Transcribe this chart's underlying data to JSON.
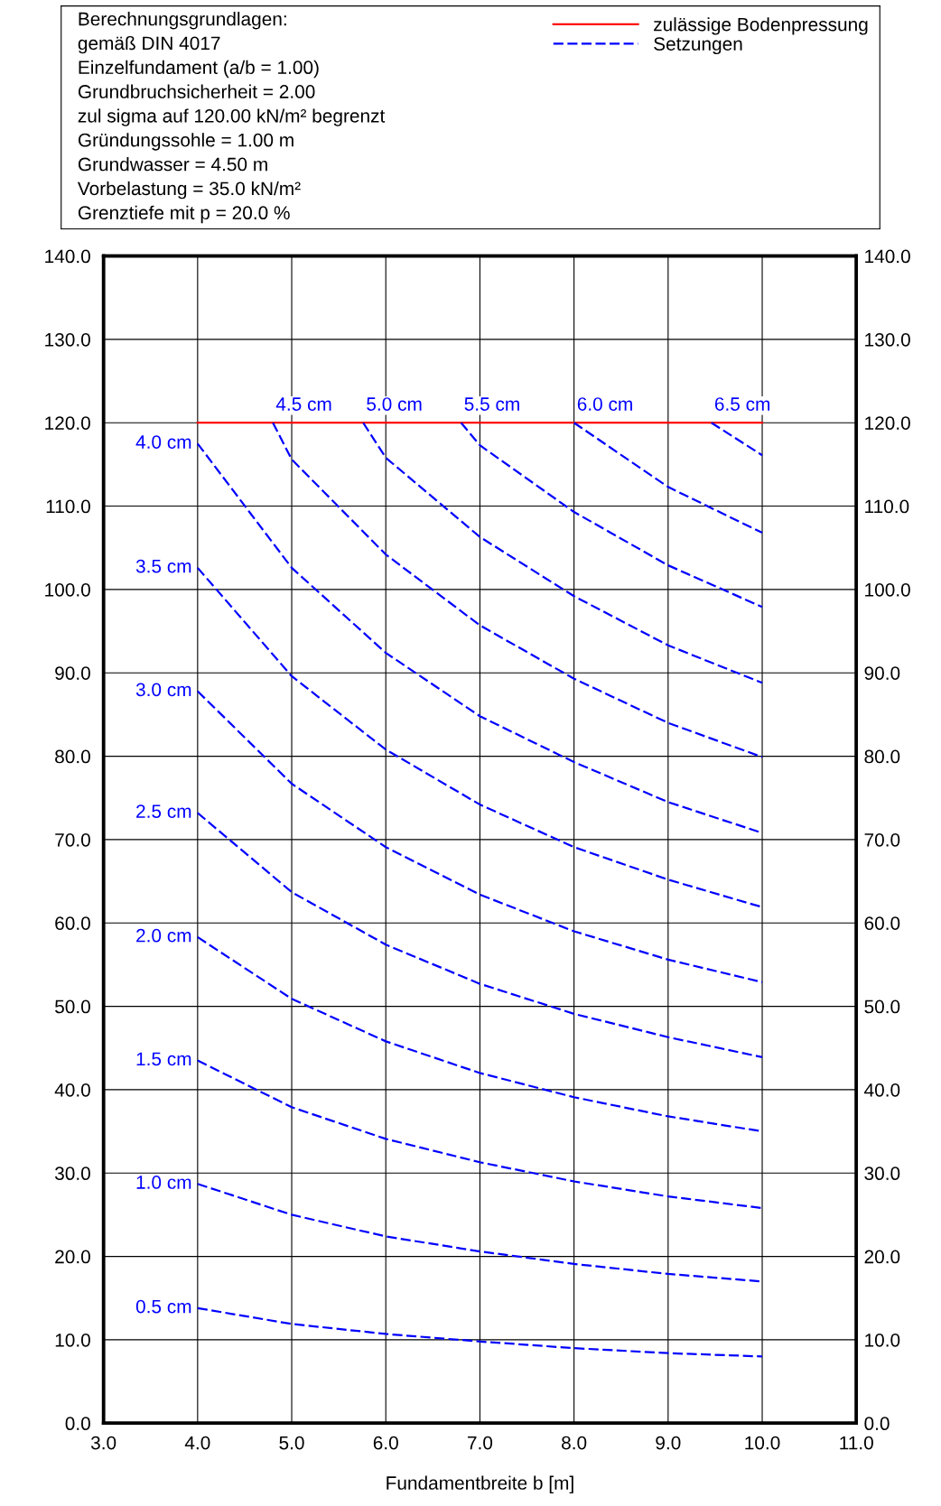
{
  "chart_data": {
    "type": "line",
    "annotations": [
      "Berechnungsgrundlagen:",
      "gemäß DIN 4017",
      "Einzelfundament (a/b = 1.00)",
      "Grundbruchsicherheit = 2.00",
      "zul sigma auf 120.00 kN/m² begrenzt",
      "Gründungssohle = 1.00 m",
      "Grundwasser = 4.50 m",
      "Vorbelastung = 35.0 kN/m²",
      "Grenztiefe mit p = 20.0 %"
    ],
    "legend_title": "Setzungen",
    "xlabel": "Fundamentbreite b [m]",
    "xlim": [
      3.0,
      11.0
    ],
    "xticks": [
      {
        "value": 3,
        "label": "3.0"
      },
      {
        "value": 4,
        "label": "4.0"
      },
      {
        "value": 5,
        "label": "5.0"
      },
      {
        "value": 6,
        "label": "6.0"
      },
      {
        "value": 7,
        "label": "7.0"
      },
      {
        "value": 8,
        "label": "8.0"
      },
      {
        "value": 9,
        "label": "9.0"
      },
      {
        "value": 10,
        "label": "10.0"
      },
      {
        "value": 11,
        "label": "11.0"
      }
    ],
    "ylim": [
      0,
      140
    ],
    "yticks": [
      {
        "value": 0,
        "label": "0.0"
      },
      {
        "value": 10,
        "label": "10.0"
      },
      {
        "value": 20,
        "label": "20.0"
      },
      {
        "value": 30,
        "label": "30.0"
      },
      {
        "value": 40,
        "label": "40.0"
      },
      {
        "value": 50,
        "label": "50.0"
      },
      {
        "value": 60,
        "label": "60.0"
      },
      {
        "value": 70,
        "label": "70.0"
      },
      {
        "value": 80,
        "label": "80.0"
      },
      {
        "value": 90,
        "label": "90.0"
      },
      {
        "value": 100,
        "label": "100.0"
      },
      {
        "value": 110,
        "label": "110.0"
      },
      {
        "value": 120,
        "label": "120.0"
      },
      {
        "value": 130,
        "label": "130.0"
      },
      {
        "value": 140,
        "label": "140.0"
      }
    ],
    "y2lim": [
      0,
      140
    ],
    "y2ticks": [
      {
        "value": 0,
        "label": "0.0"
      },
      {
        "value": 10,
        "label": "10.0"
      },
      {
        "value": 20,
        "label": "20.0"
      },
      {
        "value": 30,
        "label": "30.0"
      },
      {
        "value": 40,
        "label": "40.0"
      },
      {
        "value": 50,
        "label": "50.0"
      },
      {
        "value": 60,
        "label": "60.0"
      },
      {
        "value": 70,
        "label": "70.0"
      },
      {
        "value": 80,
        "label": "80.0"
      },
      {
        "value": 90,
        "label": "90.0"
      },
      {
        "value": 100,
        "label": "100.0"
      },
      {
        "value": 110,
        "label": "110.0"
      },
      {
        "value": 120,
        "label": "120.0"
      },
      {
        "value": 130,
        "label": "130.0"
      },
      {
        "value": 140,
        "label": "140.0"
      }
    ],
    "grid": true,
    "legend": "top right",
    "marker": "none",
    "series": [
      {
        "name": "zulässige Bodenpressung",
        "color": "#ff0000",
        "line_style": "solid",
        "x": [
          4,
          10
        ],
        "values": [
          120,
          120
        ]
      },
      {
        "name": "0.5 cm",
        "color": "#0000ff",
        "line_style": "dashed",
        "x": [
          4,
          5,
          6,
          7,
          8,
          9,
          10
        ],
        "values": [
          13.8,
          11.9,
          10.7,
          9.8,
          9.0,
          8.4,
          8.0
        ]
      },
      {
        "name": "1.0 cm",
        "color": "#0000ff",
        "line_style": "dashed",
        "x": [
          4,
          5,
          6,
          7,
          8,
          9,
          10
        ],
        "values": [
          28.7,
          25.0,
          22.4,
          20.6,
          19.1,
          17.9,
          17.0
        ]
      },
      {
        "name": "1.5 cm",
        "color": "#0000ff",
        "line_style": "dashed",
        "x": [
          4,
          5,
          6,
          7,
          8,
          9,
          10
        ],
        "values": [
          43.5,
          37.9,
          34.1,
          31.3,
          29.0,
          27.2,
          25.8
        ]
      },
      {
        "name": "2.0 cm",
        "color": "#0000ff",
        "line_style": "dashed",
        "x": [
          4,
          5,
          6,
          7,
          8,
          9,
          10
        ],
        "values": [
          58.3,
          50.9,
          45.8,
          42.0,
          39.1,
          36.8,
          35.0
        ]
      },
      {
        "name": "2.5 cm",
        "color": "#0000ff",
        "line_style": "dashed",
        "x": [
          4,
          5,
          6,
          7,
          8,
          9,
          10
        ],
        "values": [
          73.2,
          63.7,
          57.4,
          52.7,
          49.1,
          46.3,
          43.9
        ]
      },
      {
        "name": "3.0 cm",
        "color": "#0000ff",
        "line_style": "dashed",
        "x": [
          4,
          5,
          6,
          7,
          8,
          9,
          10
        ],
        "values": [
          87.8,
          76.7,
          69.1,
          63.4,
          59.0,
          55.6,
          52.9
        ]
      },
      {
        "name": "3.5 cm",
        "color": "#0000ff",
        "line_style": "dashed",
        "x": [
          4,
          5,
          6,
          7,
          8,
          9,
          10
        ],
        "values": [
          102.6,
          89.6,
          80.8,
          74.2,
          69.1,
          65.2,
          61.9
        ]
      },
      {
        "name": "4.0 cm",
        "color": "#0000ff",
        "line_style": "dashed",
        "x": [
          4,
          5,
          6,
          7,
          8,
          9,
          10
        ],
        "values": [
          117.5,
          102.6,
          92.4,
          84.8,
          79.3,
          74.5,
          70.8
        ]
      },
      {
        "name": "4.5 cm",
        "color": "#0000ff",
        "line_style": "dashed",
        "x": [
          4.8,
          5,
          6,
          7,
          8,
          9,
          10
        ],
        "values": [
          120,
          115.6,
          104.2,
          95.7,
          89.3,
          84.0,
          79.9
        ]
      },
      {
        "name": "5.0 cm",
        "color": "#0000ff",
        "line_style": "dashed",
        "x": [
          5.76,
          6,
          7,
          8,
          9,
          10
        ],
        "values": [
          120,
          115.8,
          106.3,
          99.2,
          93.3,
          88.8
        ]
      },
      {
        "name": "5.5 cm",
        "color": "#0000ff",
        "line_style": "dashed",
        "x": [
          6.8,
          7,
          8,
          9,
          10
        ],
        "values": [
          120,
          117.3,
          109.3,
          102.9,
          97.9
        ]
      },
      {
        "name": "6.0 cm",
        "color": "#0000ff",
        "line_style": "dashed",
        "x": [
          8,
          9,
          10
        ],
        "values": [
          120,
          112.3,
          106.8
        ]
      },
      {
        "name": "6.5 cm",
        "color": "#0000ff",
        "line_style": "dashed",
        "x": [
          9.46,
          10
        ],
        "values": [
          120,
          116.1
        ]
      }
    ]
  }
}
